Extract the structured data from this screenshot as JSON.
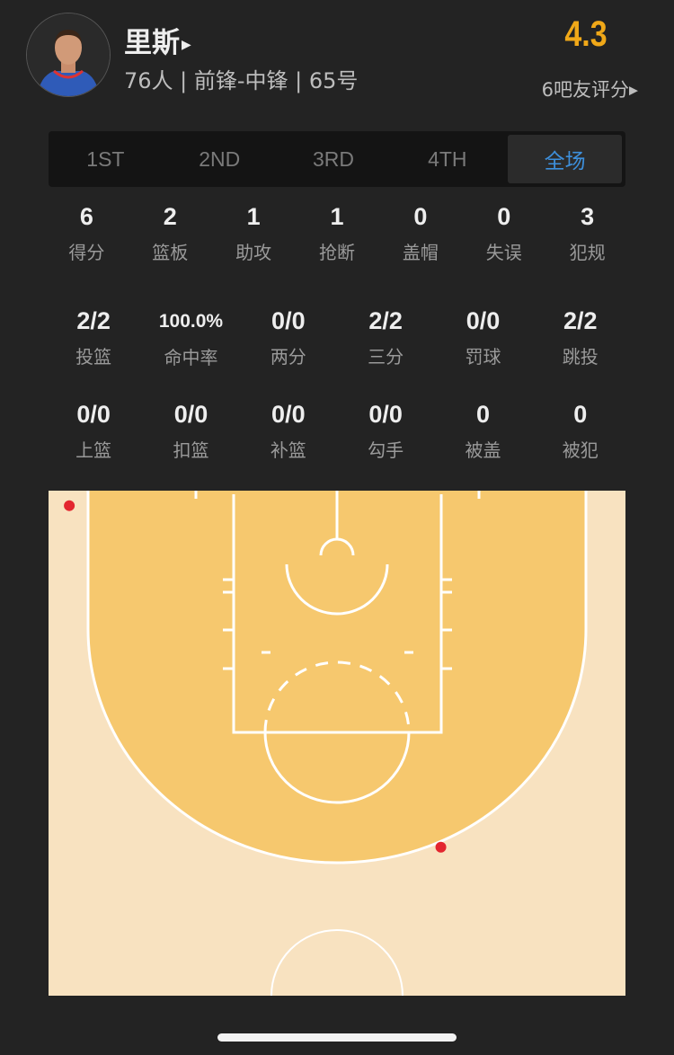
{
  "player": {
    "name": "里斯",
    "info": "76人 | 前锋-中锋 | 65号",
    "avatar_icon": "player-headshot",
    "rating": "4.3",
    "raters": "6吧友评分",
    "rating_color": "#f0a818"
  },
  "tabs": [
    {
      "label": "1ST",
      "selected": false
    },
    {
      "label": "2ND",
      "selected": false
    },
    {
      "label": "3RD",
      "selected": false
    },
    {
      "label": "4TH",
      "selected": false
    },
    {
      "label": "全场",
      "selected": true
    }
  ],
  "accent_color": "#3d8fdb",
  "stats_row1": [
    {
      "value": "6",
      "label": "得分"
    },
    {
      "value": "2",
      "label": "篮板"
    },
    {
      "value": "1",
      "label": "助攻"
    },
    {
      "value": "1",
      "label": "抢断"
    },
    {
      "value": "0",
      "label": "盖帽"
    },
    {
      "value": "0",
      "label": "失误"
    },
    {
      "value": "3",
      "label": "犯规"
    }
  ],
  "stats_row2": [
    {
      "value": "2/2",
      "label": "投篮"
    },
    {
      "value": "100.0%",
      "label": "命中率"
    },
    {
      "value": "0/0",
      "label": "两分"
    },
    {
      "value": "2/2",
      "label": "三分"
    },
    {
      "value": "0/0",
      "label": "罚球"
    },
    {
      "value": "2/2",
      "label": "跳投"
    }
  ],
  "stats_row3": [
    {
      "value": "0/0",
      "label": "上篮"
    },
    {
      "value": "0/0",
      "label": "扣篮"
    },
    {
      "value": "0/0",
      "label": "补篮"
    },
    {
      "value": "0/0",
      "label": "勾手"
    },
    {
      "value": "0",
      "label": "被盖"
    },
    {
      "value": "0",
      "label": "被犯"
    }
  ],
  "shot_chart": {
    "shot_color": "#e3262f",
    "units": "feet",
    "shots": [
      {
        "x_ft": -23.2,
        "y_ft_from_baseline": 1.3,
        "made": true
      },
      {
        "x_ft": 9.0,
        "y_ft_from_baseline": 30.9,
        "made": true
      }
    ]
  }
}
